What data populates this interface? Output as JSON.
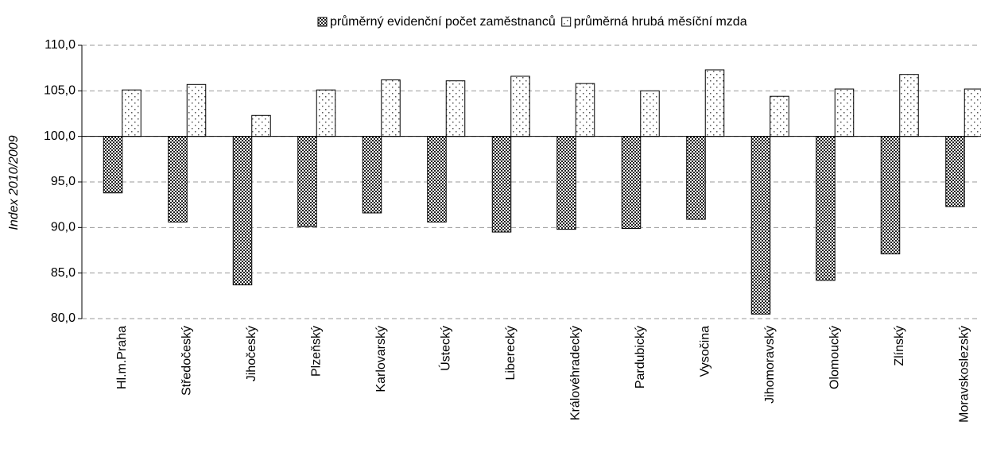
{
  "chart_data": {
    "type": "bar",
    "ylabel": "Index 2010/2009",
    "categories": [
      "Hl.m.Praha",
      "Středočeský",
      "Jihočeský",
      "Plzeňský",
      "Karlovarský",
      "Ústecký",
      "Liberecký",
      "Královéhradecký",
      "Pardubický",
      "Vysočina",
      "Jihomoravský",
      "Olomoucký",
      "Zlínský",
      "Moravskoslezský"
    ],
    "series": [
      {
        "name": "průměrný evidenční počet zaměstnanců",
        "color": "#333333",
        "pattern": "checker",
        "values": [
          93.8,
          90.6,
          83.7,
          90.1,
          91.6,
          90.6,
          89.5,
          89.8,
          89.9,
          90.9,
          80.5,
          84.2,
          87.1,
          92.3
        ]
      },
      {
        "name": "průměrná hrubá měsíční mzda",
        "color": "#ffffff",
        "pattern": "dots",
        "values": [
          105.1,
          105.7,
          102.3,
          105.1,
          106.2,
          106.1,
          106.6,
          105.8,
          105.0,
          107.3,
          104.4,
          105.2,
          106.8,
          105.2
        ]
      }
    ],
    "baseline": 100,
    "ylim": [
      80,
      110
    ],
    "yticks": [
      {
        "value": 80,
        "label": "80,0"
      },
      {
        "value": 85,
        "label": "85,0"
      },
      {
        "value": 90,
        "label": "90,0"
      },
      {
        "value": 95,
        "label": "95,0"
      },
      {
        "value": 100,
        "label": "100,0"
      },
      {
        "value": 105,
        "label": "105,0"
      },
      {
        "value": 110,
        "label": "110,0"
      }
    ],
    "grid": true,
    "legend": "top"
  }
}
